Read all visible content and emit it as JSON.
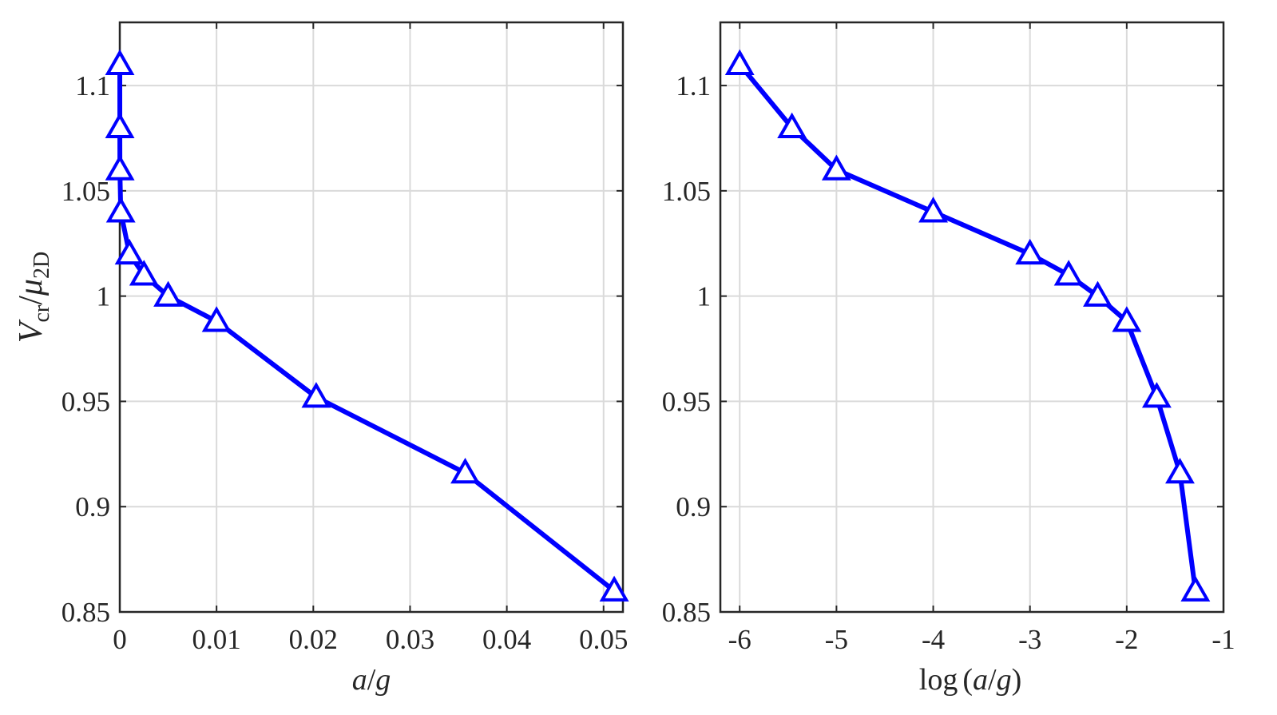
{
  "chart_data": [
    {
      "type": "line",
      "xlabel": "a/g",
      "ylabel": "V_cr/μ_2D",
      "xlim": [
        0,
        0.052
      ],
      "ylim": [
        0.85,
        1.13
      ],
      "xticks": [
        0,
        0.01,
        0.02,
        0.03,
        0.04,
        0.05
      ],
      "xtick_labels": [
        "0",
        "0.01",
        "0.02",
        "0.03",
        "0.04",
        "0.05"
      ],
      "yticks": [
        0.85,
        0.9,
        0.95,
        1,
        1.05,
        1.1
      ],
      "ytick_labels": [
        "0.85",
        "0.9",
        "0.95",
        "1",
        "1.05",
        "1.1"
      ],
      "grid": true,
      "marker": "triangle",
      "color": "#0000ff",
      "series": [
        {
          "x": [
            1e-06,
            3.5e-06,
            1e-05,
            0.0001,
            0.001,
            0.0025,
            0.005,
            0.01,
            0.0203,
            0.0357,
            0.0511
          ],
          "y": [
            1.11,
            1.08,
            1.06,
            1.04,
            1.02,
            1.01,
            1.0,
            0.988,
            0.952,
            0.916,
            0.86
          ]
        }
      ]
    },
    {
      "type": "line",
      "xlabel": "log(a/g)",
      "ylabel": "",
      "xlim": [
        -6.2,
        -1
      ],
      "ylim": [
        0.85,
        1.13
      ],
      "xticks": [
        -6,
        -5,
        -4,
        -3,
        -2,
        -1
      ],
      "xtick_labels": [
        "-6",
        "-5",
        "-4",
        "-3",
        "-2",
        "-1"
      ],
      "yticks": [
        0.85,
        0.9,
        0.95,
        1,
        1.05,
        1.1
      ],
      "ytick_labels": [
        "0.85",
        "0.9",
        "0.95",
        "1",
        "1.05",
        "1.1"
      ],
      "grid": true,
      "marker": "triangle",
      "color": "#0000ff",
      "series": [
        {
          "x": [
            -6,
            -5.46,
            -5,
            -4,
            -3,
            -2.6,
            -2.3,
            -2,
            -1.69,
            -1.45,
            -1.29
          ],
          "y": [
            1.11,
            1.08,
            1.06,
            1.04,
            1.02,
            1.01,
            1.0,
            0.988,
            0.952,
            0.916,
            0.86
          ]
        }
      ]
    }
  ]
}
